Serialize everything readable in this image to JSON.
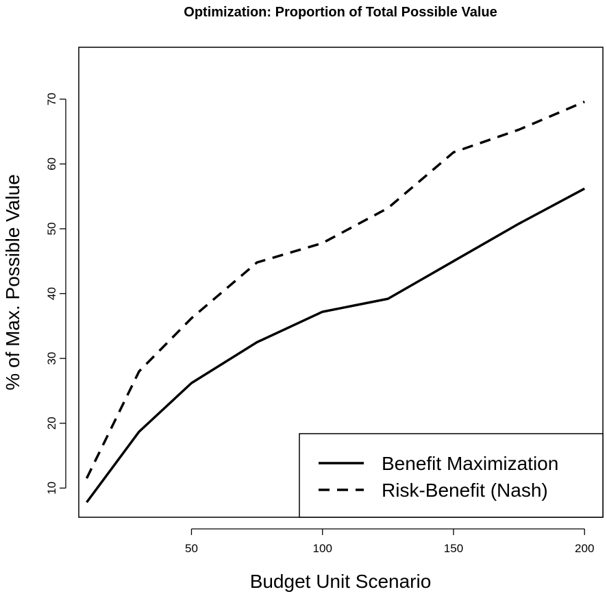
{
  "chart_data": {
    "type": "line",
    "title": "Optimization: Proportion of Total Possible Value",
    "xlabel": "Budget Unit Scenario",
    "ylabel": "% of Max. Possible Value",
    "xlim": [
      7,
      207
    ],
    "ylim": [
      5.5,
      78
    ],
    "x_ticks": [
      50,
      100,
      150,
      200
    ],
    "y_ticks": [
      10,
      20,
      30,
      40,
      50,
      60,
      70
    ],
    "x": [
      10,
      30,
      50,
      75,
      100,
      125,
      150,
      175,
      200
    ],
    "grid": false,
    "legend_position": "bottom-right",
    "series": [
      {
        "name": "Benefit Maximization",
        "style": "solid",
        "color": "#000000",
        "values": [
          7.8,
          18.7,
          26.2,
          32.5,
          37.2,
          39.2,
          45.0,
          50.8,
          56.2
        ]
      },
      {
        "name": "Risk-Benefit (Nash)",
        "style": "dashed",
        "color": "#000000",
        "values": [
          11.5,
          28.0,
          36.2,
          44.8,
          47.8,
          53.2,
          61.8,
          65.3,
          69.6
        ]
      }
    ]
  }
}
